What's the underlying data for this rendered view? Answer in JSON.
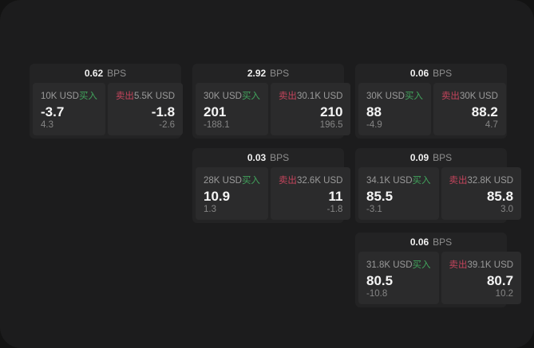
{
  "labels": {
    "bps_unit": "BPS",
    "buy": "买入",
    "sell": "卖出"
  },
  "colors": {
    "page_bg": "#131313",
    "surface_bg": "#1c1c1d",
    "card_bg": "#232324",
    "quote_panel_bg": "#2b2b2c",
    "buy_green": "#41a35c",
    "sell_red": "#c4445c",
    "value_white": "#f5f5f5",
    "label_gray": "#9a9a9a"
  },
  "cards": [
    {
      "bps": "0.62",
      "grid": {
        "row": 1,
        "col": 1
      },
      "buy": {
        "size": "10K USD",
        "price": "-3.7",
        "sub": "4.3"
      },
      "sell": {
        "size": "5.5K USD",
        "price": "-1.8",
        "sub": "-2.6"
      }
    },
    {
      "bps": "2.92",
      "grid": {
        "row": 1,
        "col": 2
      },
      "buy": {
        "size": "30K USD",
        "price": "201",
        "sub": "-188.1"
      },
      "sell": {
        "size": "30.1K USD",
        "price": "210",
        "sub": "196.5"
      }
    },
    {
      "bps": "0.06",
      "grid": {
        "row": 1,
        "col": 3
      },
      "buy": {
        "size": "30K USD",
        "price": "88",
        "sub": "-4.9"
      },
      "sell": {
        "size": "30K USD",
        "price": "88.2",
        "sub": "4.7"
      }
    },
    {
      "bps": "0.03",
      "grid": {
        "row": 2,
        "col": 2
      },
      "buy": {
        "size": "28K USD",
        "price": "10.9",
        "sub": "1.3"
      },
      "sell": {
        "size": "32.6K USD",
        "price": "11",
        "sub": "-1.8"
      }
    },
    {
      "bps": "0.09",
      "grid": {
        "row": 2,
        "col": 3
      },
      "buy": {
        "size": "34.1K USD",
        "price": "85.5",
        "sub": "-3.1"
      },
      "sell": {
        "size": "32.8K USD",
        "price": "85.8",
        "sub": "3.0"
      }
    },
    {
      "bps": "0.06",
      "grid": {
        "row": 3,
        "col": 3
      },
      "buy": {
        "size": "31.8K USD",
        "price": "80.5",
        "sub": "-10.8"
      },
      "sell": {
        "size": "39.1K USD",
        "price": "80.7",
        "sub": "10.2"
      }
    }
  ]
}
